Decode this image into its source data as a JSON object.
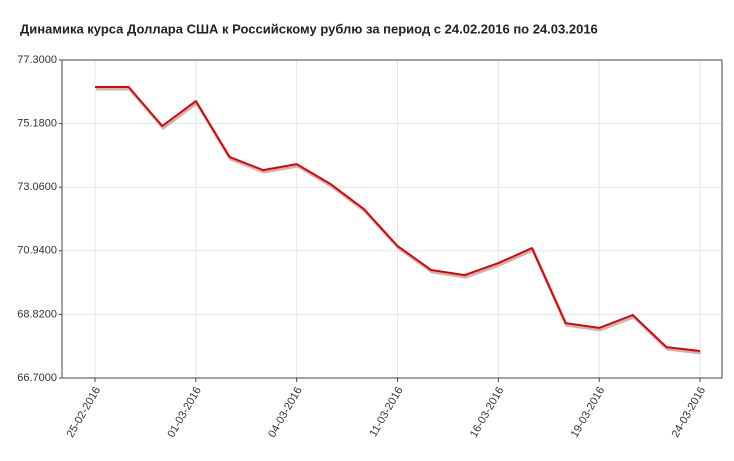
{
  "chart_data": {
    "type": "line",
    "title": "Динамика курса Доллара США к Российскому рублю за период с 24.02.2016 по 24.03.2016",
    "categories": [
      "25-02-2016",
      null,
      null,
      "01-03-2016",
      null,
      null,
      "04-03-2016",
      null,
      null,
      "11-03-2016",
      null,
      null,
      "16-03-2016",
      null,
      null,
      "19-03-2016",
      null,
      null,
      "24-03-2016"
    ],
    "values": [
      76.4,
      76.4,
      75.1,
      75.93,
      74.07,
      73.63,
      73.83,
      73.17,
      72.33,
      71.1,
      70.3,
      70.13,
      70.53,
      71.03,
      68.53,
      68.37,
      68.8,
      67.73,
      67.6
    ],
    "color": "#e60000",
    "ylim": [
      66.7,
      77.3
    ],
    "yticks": [
      {
        "value": 66.7,
        "label": "66.7000"
      },
      {
        "value": 68.82,
        "label": "68.8200"
      },
      {
        "value": 70.94,
        "label": "70.9400"
      },
      {
        "value": 73.06,
        "label": "73.0600"
      },
      {
        "value": 75.18,
        "label": "75.1800"
      },
      {
        "value": 77.3,
        "label": "77.3000"
      }
    ],
    "grid": true
  }
}
